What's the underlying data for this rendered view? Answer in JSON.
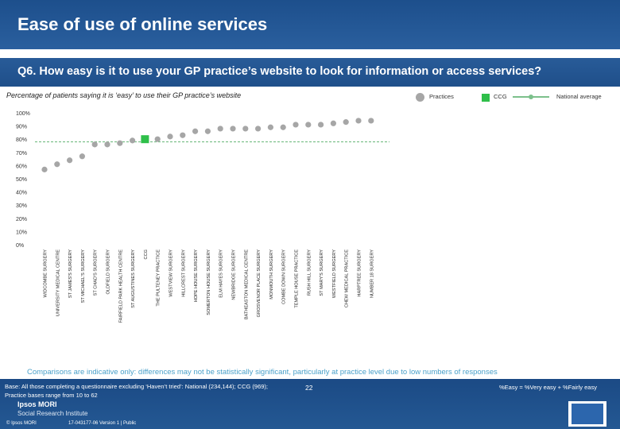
{
  "header": {
    "title": "Ease of use of online services"
  },
  "question": "Q6. How easy is it to use your GP practice’s website to look for information or access services?",
  "subtitle": "Percentage of patients saying it is ‘easy’ to use their GP practice’s website",
  "legend": {
    "practices": "Practices",
    "ccg": "CCG",
    "national": "National average"
  },
  "colors": {
    "practice": "#a6a6a6",
    "ccg": "#2fbf4a",
    "national_line": "#7cc08b",
    "header": "#1d4f8c"
  },
  "chart_data": {
    "type": "scatter",
    "title": "Percentage of patients saying it is ‘easy’ to use their GP practice’s website",
    "xlabel": "",
    "ylabel": "",
    "ylim": [
      0,
      100
    ],
    "yticks": [
      "0%",
      "10%",
      "20%",
      "30%",
      "40%",
      "50%",
      "60%",
      "70%",
      "80%",
      "90%",
      "100%"
    ],
    "national_average": 78,
    "ccg_category": "CCG",
    "categories": [
      "WIDCOMBE SURGERY",
      "UNIVERSITY MEDICAL CENTRE",
      "ST JAMES'S SURGERY",
      "ST MICHAEL'S SURGERY",
      "ST CHAD'S SURGERY",
      "OLDFIELD SURGERY",
      "FAIRFIELD PARK HEALTH CENTRE",
      "ST AUGUSTINES SURGERY",
      "CCG",
      "THE PULTENEY PRACTICE",
      "WESTVIEW SURGERY",
      "HILLCREST SURGERY",
      "HOPE HOUSE SURGERY",
      "SOMERTON HOUSE SURGERY",
      "ELM HAYES SURGERY",
      "NEWBRIDGE SURGERY",
      "BATHEASTON MEDICAL CENTRE",
      "GROSVENOR PLACE SURGERY",
      "MONMOUTH SURGERY",
      "COMBE DOWN SURGERY",
      "TEMPLE HOUSE PRACTICE",
      "RUSH HILL SURGERY",
      "ST MARY'S SURGERY",
      "WESTFIELD SURGERY",
      "CHEW MEDICAL PRACTICE",
      "HARPTREE SURGERY",
      "NUMBER 18 SURGERY"
    ],
    "values": [
      57,
      61,
      64,
      67,
      76,
      76,
      77,
      79,
      80,
      80,
      82,
      83,
      86,
      86,
      88,
      88,
      88,
      88,
      89,
      89,
      91,
      91,
      91,
      92,
      93,
      94,
      94
    ]
  },
  "footer": {
    "comparisons": "Comparisons are indicative only: differences may not be statistically significant, particularly at practice level due to low numbers of responses",
    "base_line1": "Base: All those completing a questionnaire excluding ‘Haven’t tried’: National (234,144); CCG (969);",
    "base_line2": "Practice bases range from 10 to 62",
    "formula": "%Easy = %Very easy + %Fairly easy",
    "page": "22",
    "brand_name": "Ipsos MORI",
    "brand_sub": "Social Research Institute",
    "copyright": "© Ipsos MORI",
    "job": "17-043177-06 Version 1 | Public"
  }
}
